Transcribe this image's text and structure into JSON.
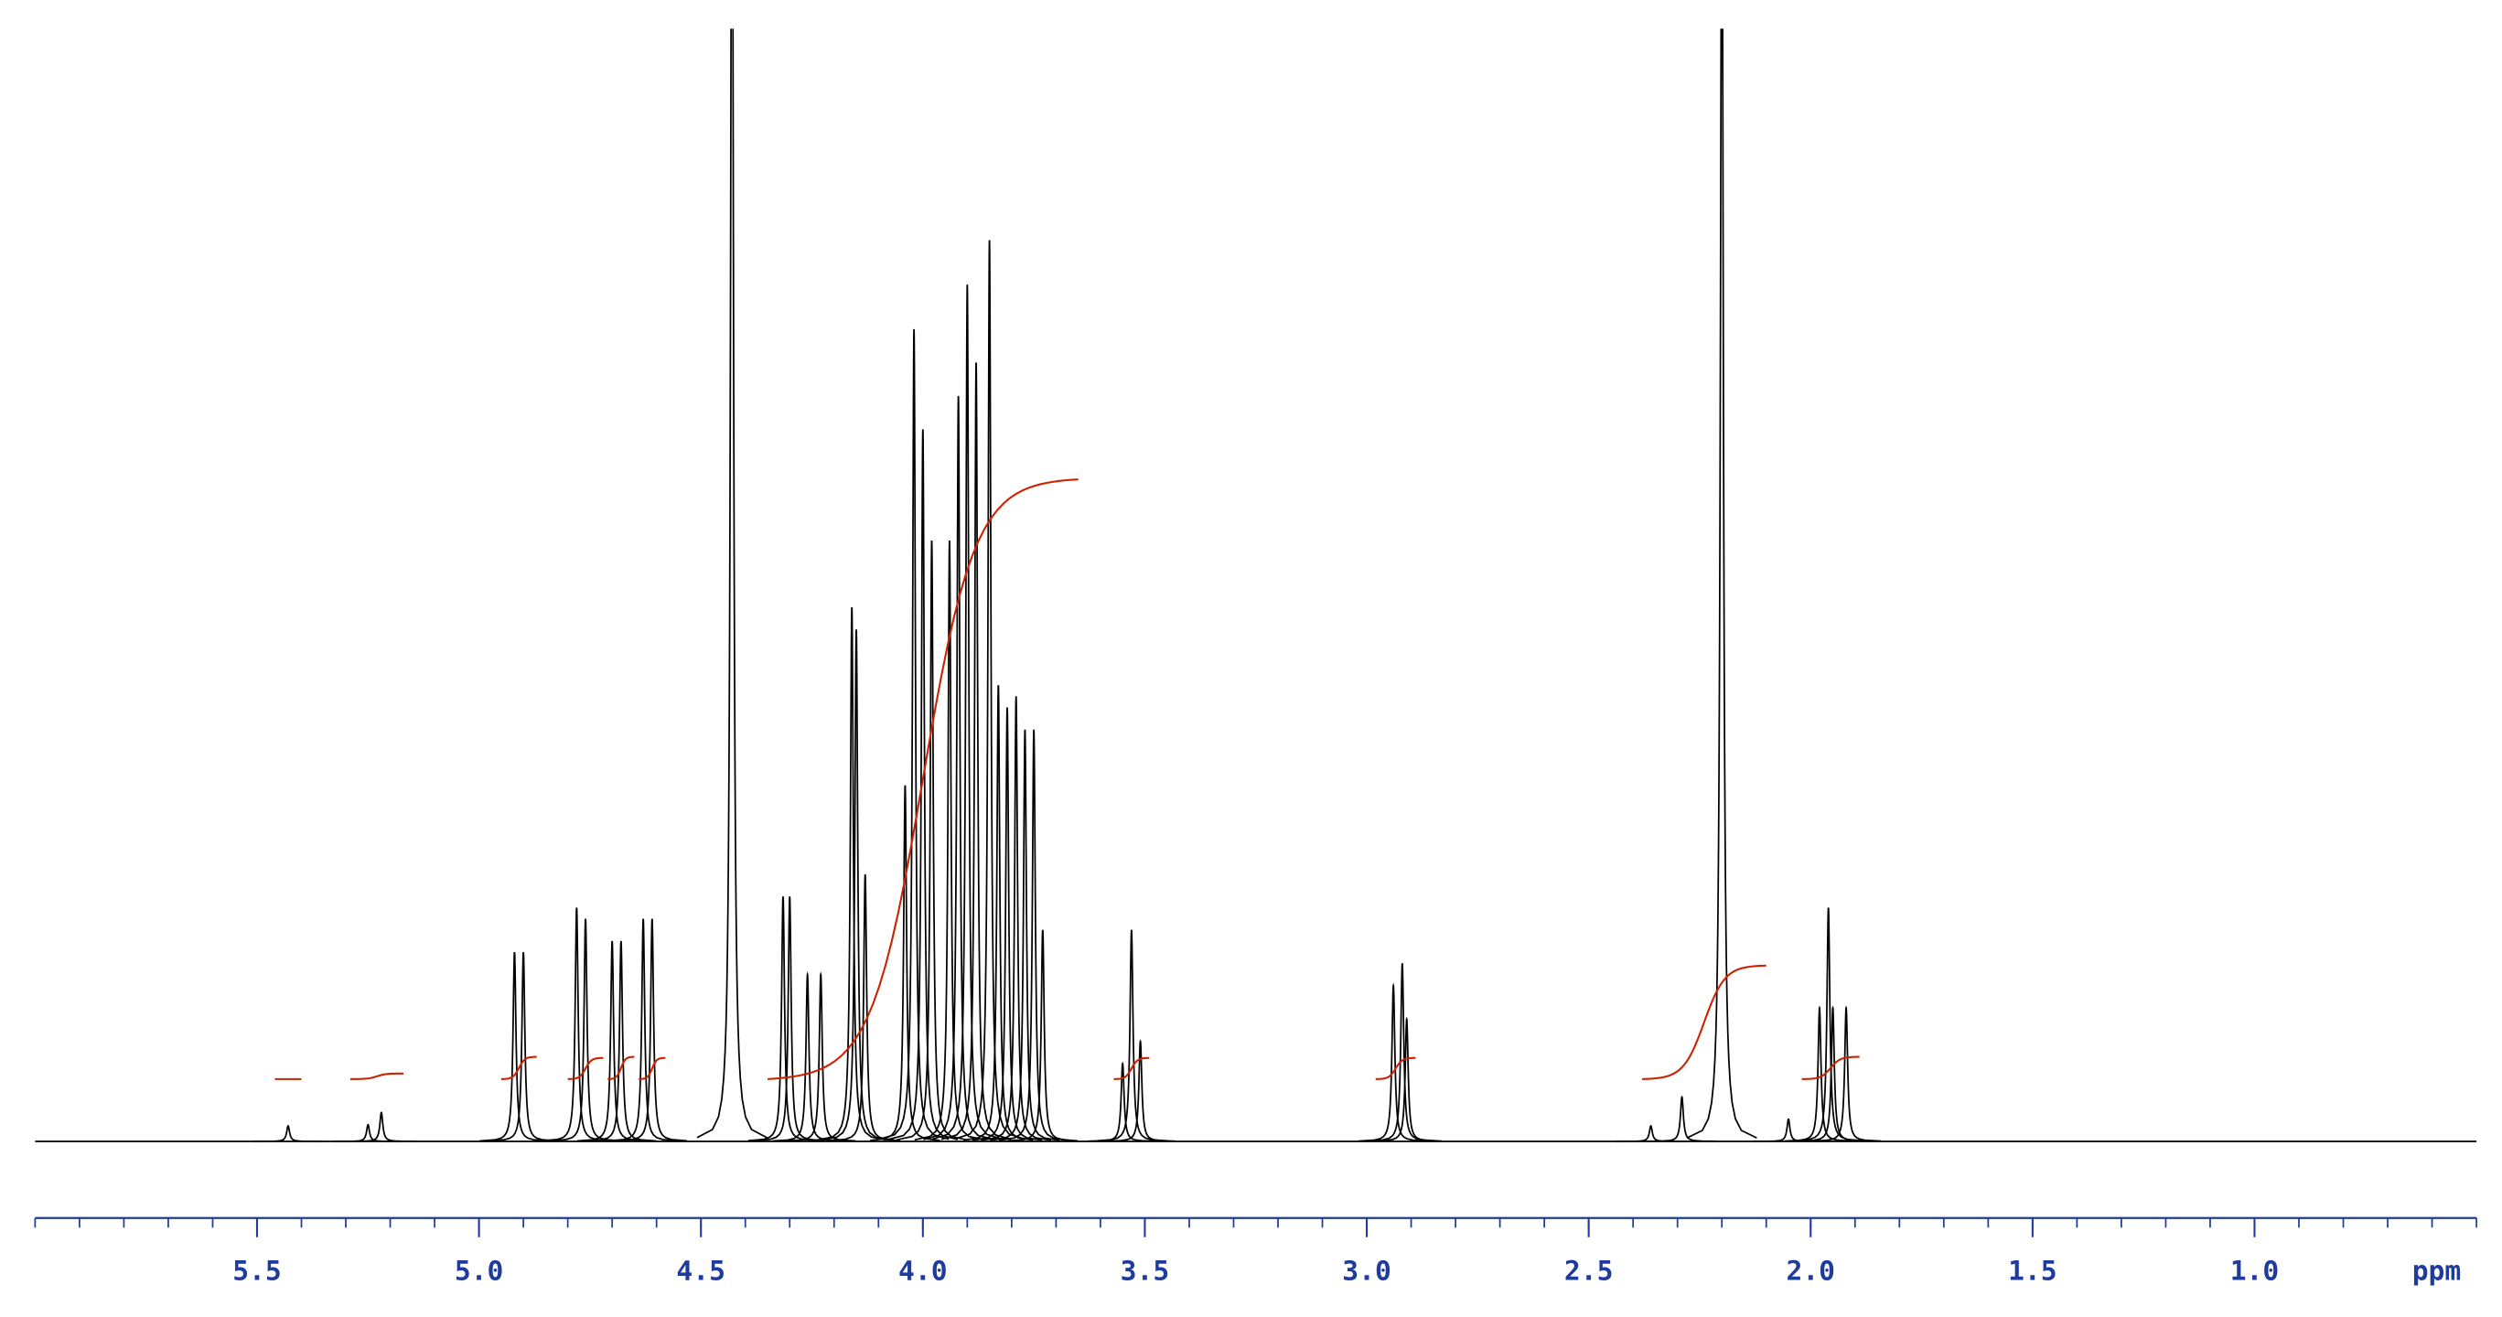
{
  "chart_data": {
    "type": "nmr",
    "xlabel": "ppm",
    "xlim": [
      6.0,
      0.5
    ],
    "ylim": [
      0,
      100
    ],
    "xticks": [
      5.5,
      {
        "value": 5,
        "label": "5.0"
      },
      4.5,
      {
        "value": 4,
        "label": "4.0"
      },
      3.5,
      {
        "value": 3,
        "label": "3.0"
      },
      2.5,
      {
        "value": 2,
        "label": "2.0"
      },
      1.5,
      {
        "value": 1,
        "label": "1.0"
      }
    ],
    "minor_xticks": [
      6.0,
      5.9,
      5.8,
      5.7,
      5.6,
      5.5,
      5.4,
      5.3,
      5.2,
      5.1,
      5.0,
      4.9,
      4.8,
      4.7,
      4.6,
      4.5,
      4.4,
      4.3,
      4.2,
      4.1,
      4.0,
      3.9,
      3.8,
      3.7,
      3.6,
      3.5,
      3.4,
      3.3,
      3.2,
      3.1,
      3.0,
      2.9,
      2.8,
      2.7,
      2.6,
      2.5,
      2.4,
      2.3,
      2.2,
      2.1,
      2.0,
      1.9,
      1.8,
      1.7,
      1.6,
      1.5,
      1.4,
      1.3,
      1.2,
      1.1,
      1.0,
      0.9,
      0.8,
      0.7,
      0.6,
      0.5
    ],
    "x": [
      5.43,
      5.25,
      5.22,
      4.92,
      4.9,
      4.78,
      4.76,
      4.7,
      4.68,
      4.63,
      4.61,
      4.43,
      4.315,
      4.3,
      4.26,
      4.23,
      4.16,
      4.15,
      4.13,
      4.04,
      4.02,
      4.0,
      3.98,
      3.94,
      3.92,
      3.9,
      3.88,
      3.85,
      3.83,
      3.81,
      3.79,
      3.77,
      3.75,
      3.73,
      3.55,
      3.53,
      3.51,
      2.94,
      2.92,
      2.91,
      2.36,
      2.29,
      2.2,
      2.05,
      1.98,
      1.96,
      1.95,
      1.92
    ],
    "values": [
      1.4,
      1.5,
      2.6,
      17,
      17,
      21,
      20,
      18,
      18,
      20,
      20,
      130,
      22,
      22,
      15,
      15,
      48,
      46,
      24,
      32,
      73,
      64,
      54,
      54,
      67,
      77,
      70,
      81,
      41,
      39,
      40,
      37,
      37,
      19,
      7,
      19,
      9,
      14,
      16,
      11,
      1.4,
      4,
      120,
      2,
      12,
      21,
      12,
      12
    ],
    "color": "#000000",
    "integral_color": "#cc2200",
    "integrals": [
      {
        "from": 5.46,
        "to": 5.4,
        "start": 5.6,
        "end": 5.6
      },
      {
        "from": 5.29,
        "to": 5.17,
        "start": 5.6,
        "end": 6.1
      },
      {
        "from": 4.95,
        "to": 4.87,
        "start": 5.6,
        "end": 7.6
      },
      {
        "from": 4.8,
        "to": 4.72,
        "start": 5.6,
        "end": 7.5
      },
      {
        "from": 4.71,
        "to": 4.65,
        "start": 5.6,
        "end": 7.6
      },
      {
        "from": 4.64,
        "to": 4.58,
        "start": 5.6,
        "end": 7.5
      },
      {
        "from": 4.35,
        "to": 3.65,
        "start": 5.6,
        "end": 59.5
      },
      {
        "from": 3.57,
        "to": 3.49,
        "start": 5.6,
        "end": 7.5
      },
      {
        "from": 2.98,
        "to": 2.89,
        "start": 5.6,
        "end": 7.5
      },
      {
        "from": 2.38,
        "to": 2.1,
        "start": 5.6,
        "end": 15.8
      },
      {
        "from": 2.02,
        "to": 1.89,
        "start": 5.6,
        "end": 7.6
      }
    ],
    "axis_label_color": "#1f3c9c"
  }
}
